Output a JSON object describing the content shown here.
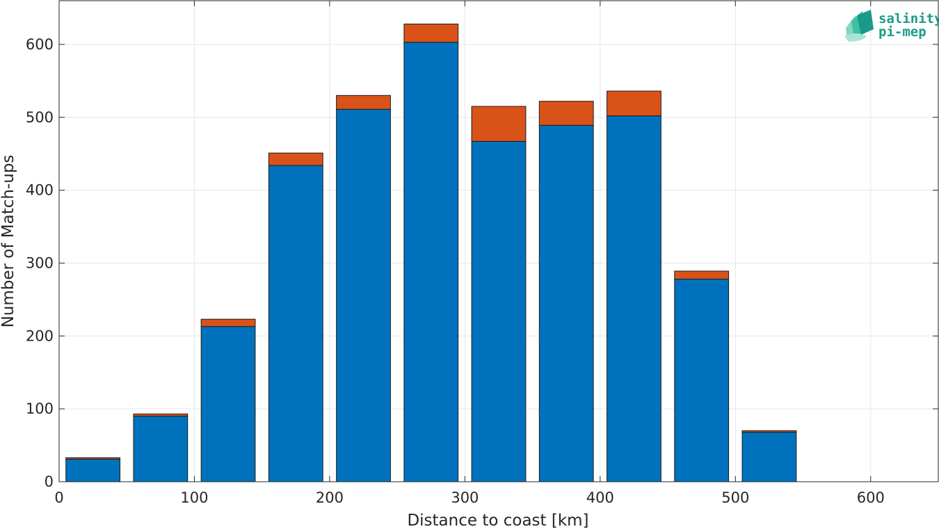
{
  "chart_data": {
    "type": "bar",
    "stacked": true,
    "title": "",
    "xlabel": "Distance to coast [km]",
    "ylabel": "Number of Match-ups",
    "xlim": [
      0,
      650
    ],
    "ylim": [
      0,
      660
    ],
    "xticks": [
      0,
      100,
      200,
      300,
      400,
      500,
      600
    ],
    "yticks": [
      0,
      100,
      200,
      300,
      400,
      500,
      600
    ],
    "grid": true,
    "bin_width": 50,
    "x": [
      25,
      75,
      125,
      175,
      225,
      275,
      325,
      375,
      425,
      475,
      525
    ],
    "series": [
      {
        "color": "#0072bd",
        "values": [
          31,
          90,
          213,
          434,
          511,
          603,
          467,
          489,
          502,
          278,
          68
        ]
      },
      {
        "color": "#d95319",
        "values": [
          2,
          3,
          10,
          17,
          19,
          25,
          48,
          33,
          34,
          11,
          2
        ]
      }
    ]
  },
  "logo": {
    "line1": "salinity",
    "line2": "pi-mep",
    "color": "#1a9b8a"
  }
}
